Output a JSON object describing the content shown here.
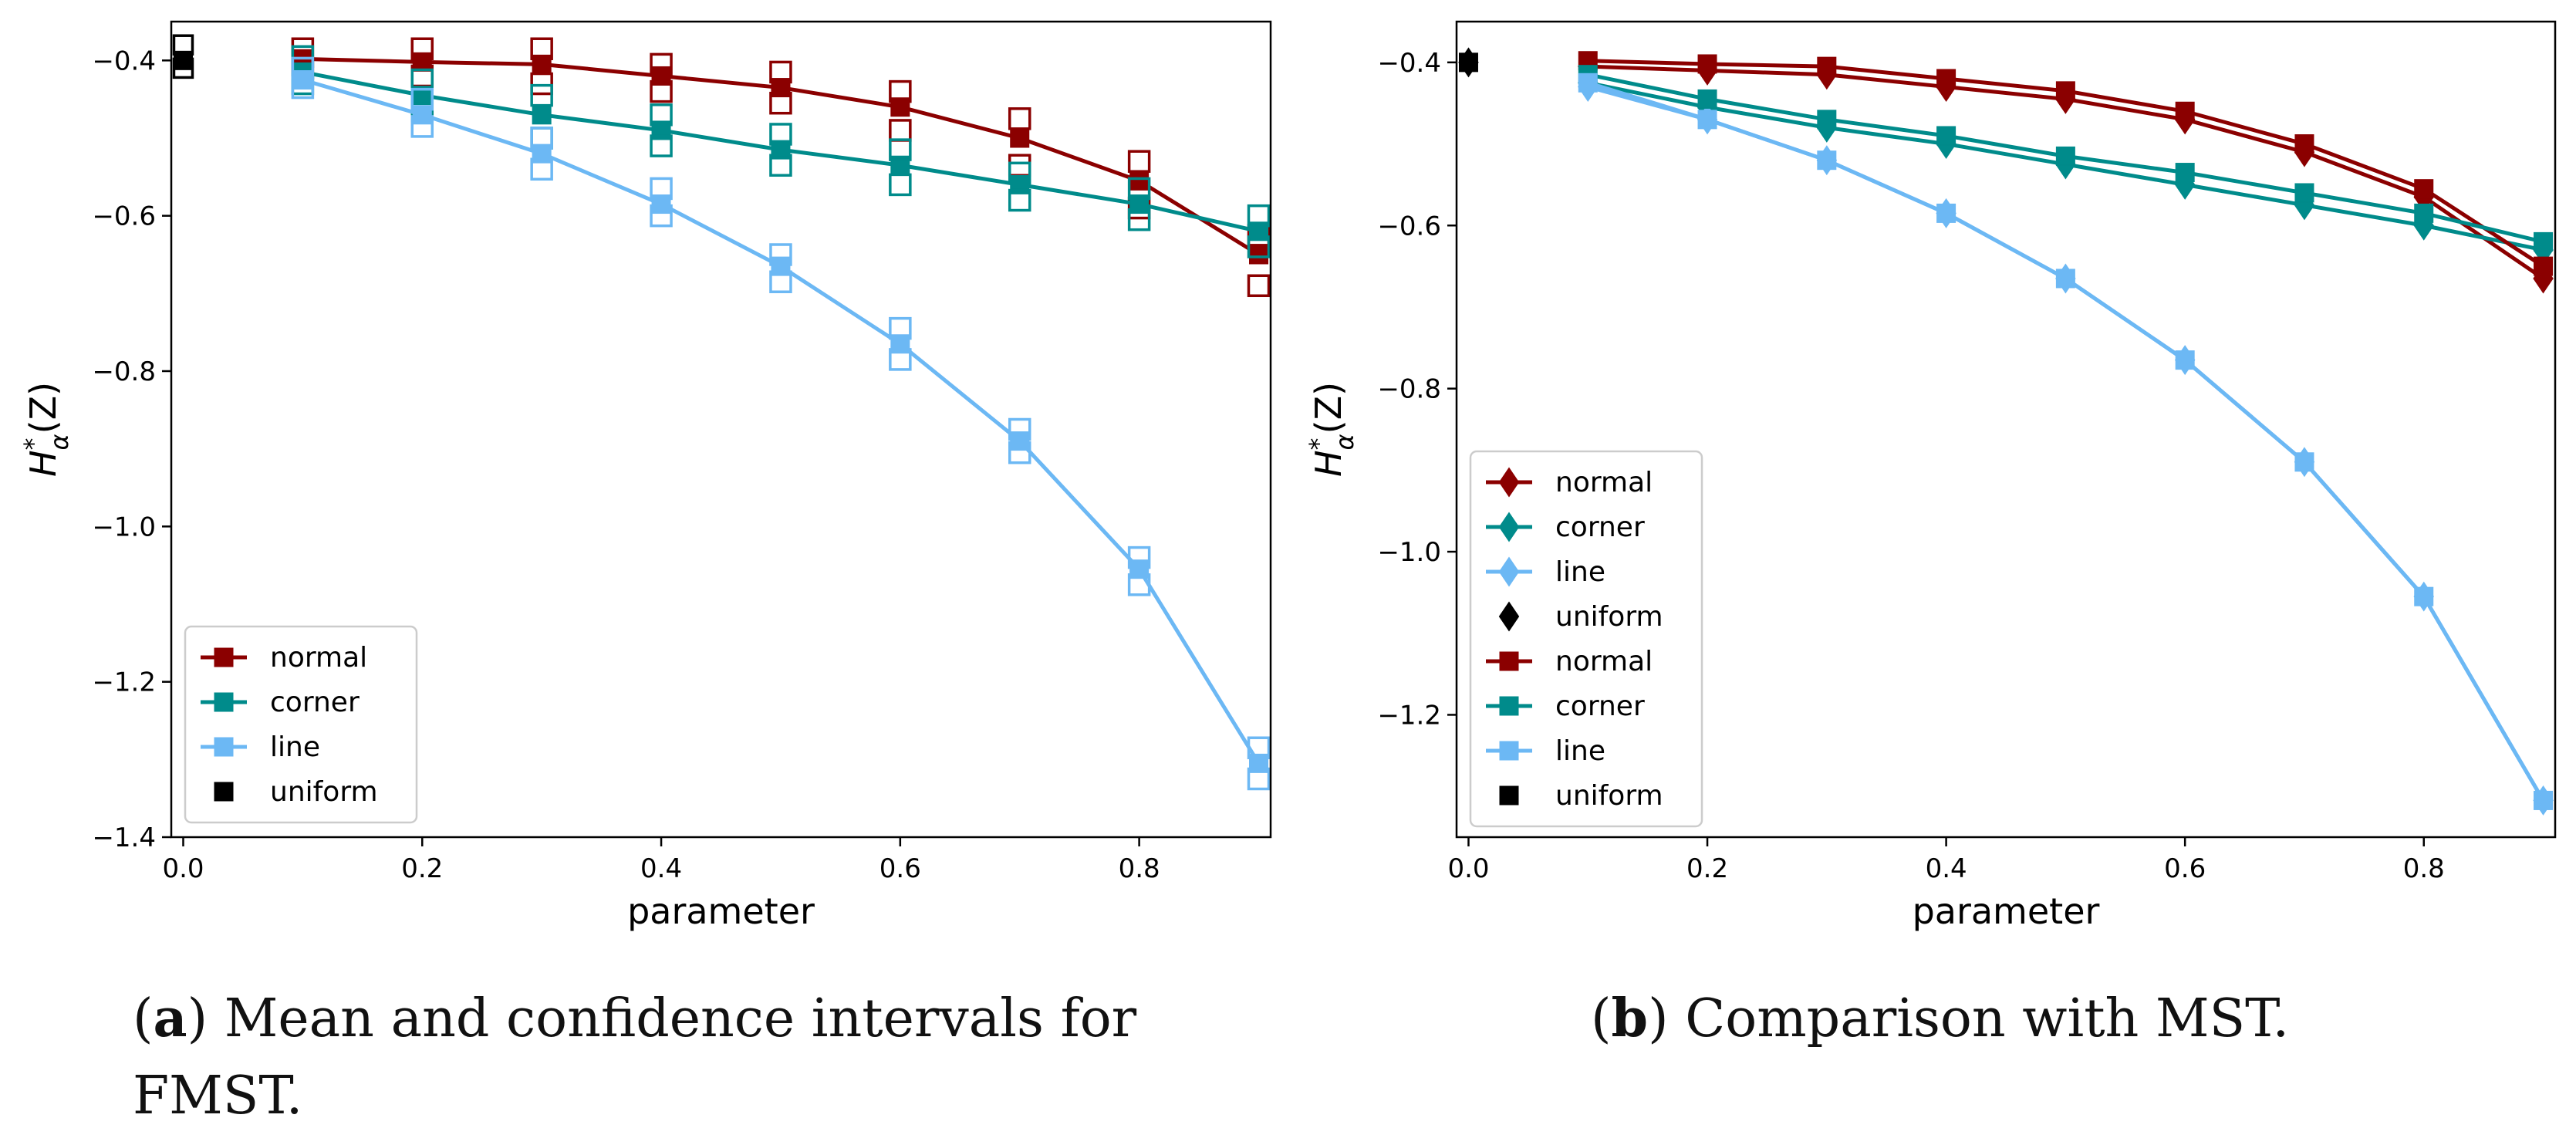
{
  "colors": {
    "normal": "#8b0000",
    "corner": "#008b8b",
    "line": "#6cb8f4",
    "uniform": "#000000"
  },
  "captions": [
    {
      "tag": "a",
      "text": "Mean and confidence intervals for",
      "text2": "FMST."
    },
    {
      "tag": "b",
      "text": "Comparison with MST."
    }
  ],
  "chart_data": [
    {
      "type": "line",
      "xlabel": "parameter",
      "ylabel_base": "H",
      "ylabel_sup": "*",
      "ylabel_sub": "α",
      "ylabel_arg": "(Z)",
      "xlim": [
        -0.01,
        0.91
      ],
      "ylim": [
        -1.4,
        -0.35
      ],
      "xticks": [
        0.0,
        0.2,
        0.4,
        0.6,
        0.8
      ],
      "xtick_labels": [
        "0.0",
        "0.2",
        "0.4",
        "0.6",
        "0.8"
      ],
      "yticks": [
        -0.4,
        -0.6,
        -0.8,
        -1.0,
        -1.2,
        -1.4
      ],
      "ytick_labels": [
        "−0.4",
        "−0.6",
        "−0.8",
        "−1.0",
        "−1.2",
        "−1.4"
      ],
      "x": [
        0.1,
        0.2,
        0.3,
        0.4,
        0.5,
        0.6,
        0.7,
        0.8,
        0.9
      ],
      "series": [
        {
          "name": "normal",
          "color_key": "normal",
          "marker": "square",
          "values": [
            -0.398,
            -0.402,
            -0.405,
            -0.42,
            -0.435,
            -0.46,
            -0.5,
            -0.555,
            -0.65
          ],
          "lo": [
            -0.41,
            -0.42,
            -0.43,
            -0.44,
            -0.455,
            -0.49,
            -0.535,
            -0.59,
            -0.69
          ],
          "hi": [
            -0.385,
            -0.385,
            -0.385,
            -0.405,
            -0.415,
            -0.44,
            -0.475,
            -0.53,
            -0.625
          ]
        },
        {
          "name": "corner",
          "color_key": "corner",
          "marker": "square",
          "values": [
            -0.415,
            -0.445,
            -0.47,
            -0.49,
            -0.515,
            -0.535,
            -0.56,
            -0.585,
            -0.62
          ],
          "lo": [
            -0.43,
            -0.465,
            -0.5,
            -0.51,
            -0.535,
            -0.56,
            -0.58,
            -0.605,
            -0.64
          ],
          "hi": [
            -0.395,
            -0.425,
            -0.445,
            -0.47,
            -0.495,
            -0.515,
            -0.545,
            -0.565,
            -0.6
          ]
        },
        {
          "name": "line",
          "color_key": "line",
          "marker": "square",
          "values": [
            -0.425,
            -0.47,
            -0.52,
            -0.585,
            -0.665,
            -0.765,
            -0.89,
            -1.055,
            -1.305
          ],
          "lo": [
            -0.435,
            -0.485,
            -0.54,
            -0.6,
            -0.685,
            -0.785,
            -0.905,
            -1.075,
            -1.325
          ],
          "hi": [
            -0.41,
            -0.45,
            -0.5,
            -0.565,
            -0.65,
            -0.745,
            -0.875,
            -1.04,
            -1.285
          ]
        }
      ],
      "uniform": {
        "name": "uniform",
        "x": 0.0,
        "value": -0.4,
        "lo": -0.41,
        "hi": -0.38
      },
      "legend": [
        "normal",
        "corner",
        "line",
        "uniform"
      ],
      "legend_loc": "lower-left"
    },
    {
      "type": "line",
      "xlabel": "parameter",
      "ylabel_base": "H",
      "ylabel_sup": "*",
      "ylabel_sub": "α",
      "ylabel_arg": "(Z)",
      "xlim": [
        -0.01,
        0.91
      ],
      "ylim": [
        -1.35,
        -0.35
      ],
      "xticks": [
        0.0,
        0.2,
        0.4,
        0.6,
        0.8
      ],
      "xtick_labels": [
        "0.0",
        "0.2",
        "0.4",
        "0.6",
        "0.8"
      ],
      "yticks": [
        -0.4,
        -0.6,
        -0.8,
        -1.0,
        -1.2
      ],
      "ytick_labels": [
        "−0.4",
        "−0.6",
        "−0.8",
        "−1.0",
        "−1.2"
      ],
      "x": [
        0.1,
        0.2,
        0.3,
        0.4,
        0.5,
        0.6,
        0.7,
        0.8,
        0.9
      ],
      "series": [
        {
          "name": "normal",
          "color_key": "normal",
          "marker": "diamond",
          "values": [
            -0.405,
            -0.41,
            -0.415,
            -0.43,
            -0.445,
            -0.47,
            -0.51,
            -0.565,
            -0.665
          ]
        },
        {
          "name": "corner",
          "color_key": "corner",
          "marker": "diamond",
          "values": [
            -0.425,
            -0.455,
            -0.48,
            -0.5,
            -0.525,
            -0.55,
            -0.575,
            -0.6,
            -0.63
          ]
        },
        {
          "name": "line",
          "color_key": "line",
          "marker": "diamond",
          "values": [
            -0.43,
            -0.47,
            -0.52,
            -0.585,
            -0.665,
            -0.765,
            -0.89,
            -1.055,
            -1.305
          ]
        },
        {
          "name": "normal",
          "color_key": "normal",
          "marker": "square",
          "values": [
            -0.398,
            -0.402,
            -0.405,
            -0.42,
            -0.435,
            -0.46,
            -0.5,
            -0.555,
            -0.65
          ]
        },
        {
          "name": "corner",
          "color_key": "corner",
          "marker": "square",
          "values": [
            -0.415,
            -0.445,
            -0.47,
            -0.49,
            -0.515,
            -0.535,
            -0.56,
            -0.585,
            -0.62
          ]
        },
        {
          "name": "line",
          "color_key": "line",
          "marker": "square",
          "values": [
            -0.425,
            -0.47,
            -0.52,
            -0.585,
            -0.665,
            -0.765,
            -0.89,
            -1.055,
            -1.305
          ]
        }
      ],
      "uniform_points": [
        {
          "name": "uniform",
          "marker": "diamond",
          "x": 0.0,
          "value": -0.4
        },
        {
          "name": "uniform",
          "marker": "square",
          "x": 0.0,
          "value": -0.4
        }
      ],
      "legend": [
        {
          "label": "normal",
          "marker": "diamond",
          "color_key": "normal"
        },
        {
          "label": "corner",
          "marker": "diamond",
          "color_key": "corner"
        },
        {
          "label": "line",
          "marker": "diamond",
          "color_key": "line"
        },
        {
          "label": "uniform",
          "marker": "diamond",
          "color_key": "uniform",
          "point_only": true
        },
        {
          "label": "normal",
          "marker": "square",
          "color_key": "normal"
        },
        {
          "label": "corner",
          "marker": "square",
          "color_key": "corner"
        },
        {
          "label": "line",
          "marker": "square",
          "color_key": "line"
        },
        {
          "label": "uniform",
          "marker": "square",
          "color_key": "uniform",
          "point_only": true
        }
      ],
      "legend_loc": "lower-left"
    }
  ]
}
